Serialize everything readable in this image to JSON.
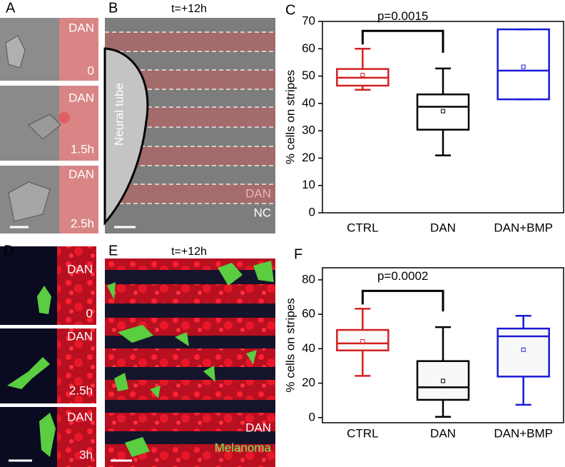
{
  "panels": {
    "A": {
      "label": "A",
      "frames": [
        {
          "stripe": "DAN",
          "time": "0"
        },
        {
          "stripe": "DAN",
          "time": "1.5h"
        },
        {
          "stripe": "DAN",
          "time": "2.5h"
        }
      ]
    },
    "B": {
      "label": "B",
      "title": "t=+12h",
      "tissue": "Neural tube",
      "stripe": "DAN",
      "cells": "NC"
    },
    "C": {
      "label": "C"
    },
    "D": {
      "label": "D",
      "frames": [
        {
          "stripe": "DAN",
          "time": "0"
        },
        {
          "stripe": "DAN",
          "time": "2.5h"
        },
        {
          "stripe": "DAN",
          "time": "3h"
        }
      ]
    },
    "E": {
      "label": "E",
      "title": "t=+12h",
      "stripe": "DAN",
      "cells": "Melanoma"
    },
    "F": {
      "label": "F"
    }
  },
  "chart_data": [
    {
      "type": "box",
      "ylabel": "% cells on stripes",
      "ylim": [
        0,
        70
      ],
      "yticks": [
        0,
        10,
        20,
        30,
        40,
        50,
        60,
        70
      ],
      "annotation": "p=0.0015",
      "boxes": [
        {
          "name": "CTRL",
          "color": "#d42020",
          "whislo": 45,
          "q1": 46.5,
          "med": 49.4,
          "q3": 52.6,
          "whishi": 60,
          "mean": 50.4
        },
        {
          "name": "DAN",
          "color": "#000000",
          "whislo": 21,
          "q1": 30.4,
          "med": 38.8,
          "q3": 43.3,
          "whishi": 52.8,
          "mean": 37.2
        },
        {
          "name": "DAN+BMP",
          "color": "#1a1ad6",
          "whislo": 41.5,
          "q1": 41.5,
          "med": 52,
          "q3": 67.1,
          "whishi": 67.1,
          "mean": 53.4
        }
      ]
    },
    {
      "type": "box",
      "ylabel": "% cells on stripes",
      "ylim": [
        -3,
        87
      ],
      "yticks": [
        0,
        20,
        40,
        60,
        80
      ],
      "annotation": "p=0.0002",
      "boxes": [
        {
          "name": "CTRL",
          "color": "#d42020",
          "whislo": 24.2,
          "q1": 39,
          "med": 43.1,
          "q3": 50.9,
          "whishi": 63.2,
          "mean": 44.3
        },
        {
          "name": "DAN",
          "color": "#000000",
          "whislo": 0.4,
          "q1": 10.3,
          "med": 17.6,
          "q3": 32.8,
          "whishi": 52.5,
          "mean": 21.3
        },
        {
          "name": "DAN+BMP",
          "color": "#1a1ad6",
          "whislo": 7.4,
          "q1": 23.8,
          "med": 47.2,
          "q3": 51.7,
          "whishi": 59.1,
          "mean": 39.4
        }
      ]
    }
  ]
}
